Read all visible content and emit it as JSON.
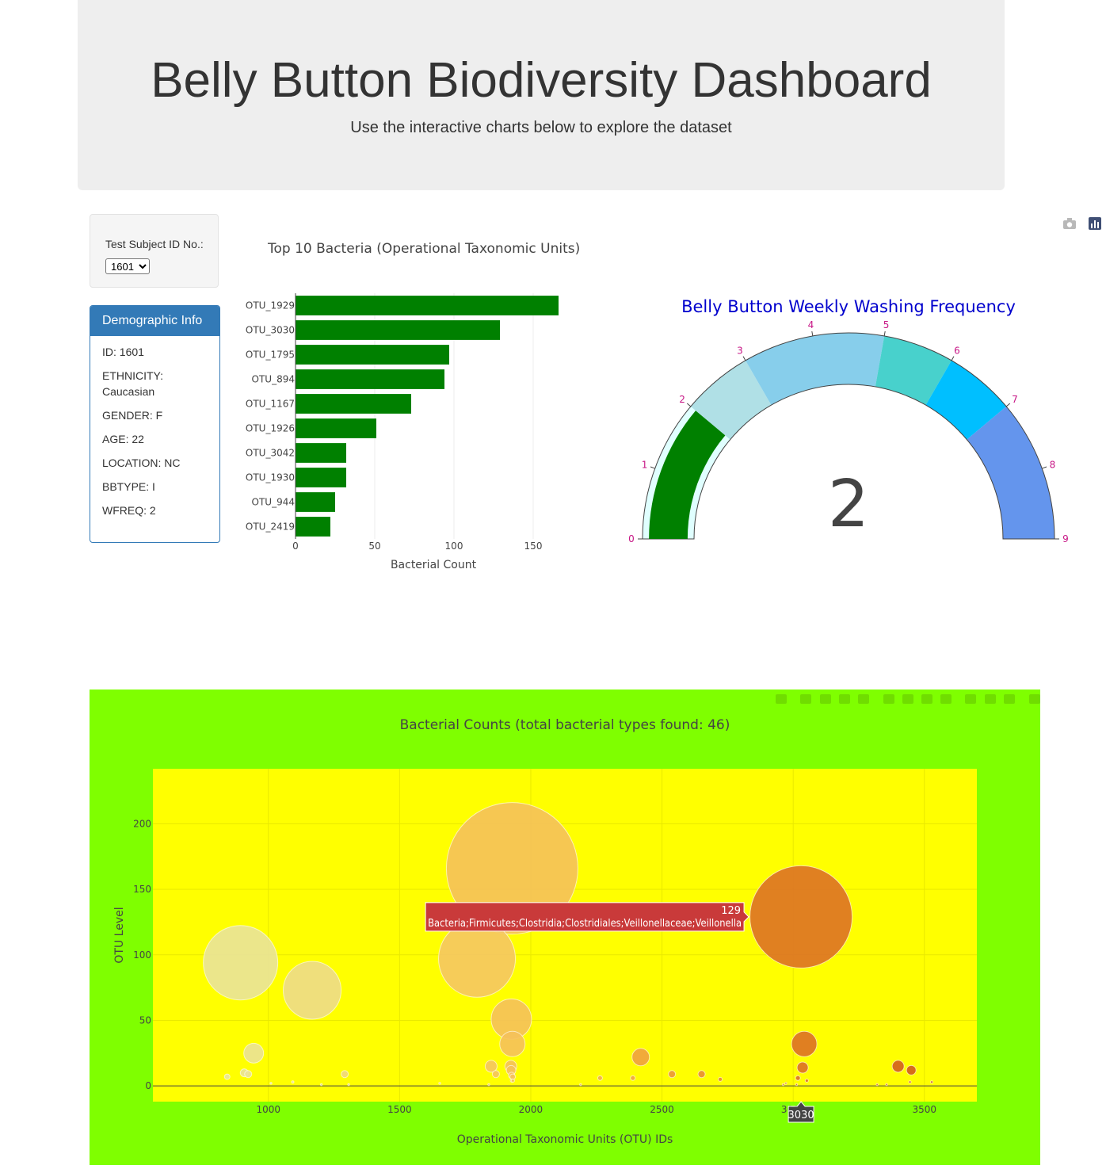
{
  "header": {
    "title": "Belly Button Biodiversity Dashboard",
    "subtitle": "Use the interactive charts below to explore the dataset"
  },
  "selector": {
    "label": "Test Subject ID No.:",
    "selected": "1601"
  },
  "demographics": {
    "title": "Demographic Info",
    "lines": [
      "ID: 1601",
      "ETHNICITY: Caucasian",
      "GENDER: F",
      "AGE: 22",
      "LOCATION: NC",
      "BBTYPE: I",
      "WFREQ: 2"
    ]
  },
  "colors": {
    "bar": "#008000",
    "demographic_header": "#337ab7",
    "bubble_paper": "#7fff00",
    "bubble_plot": "#ffff00",
    "gauge_title": "#0000cd",
    "gauge_ticks": "#c71585",
    "hover_label": "#c93a3a"
  },
  "icons": {
    "top_modebar": [
      "camera-icon",
      "plotly-logo-icon"
    ],
    "bubble_modebar": [
      "camera-icon",
      "zoom-icon",
      "pan-icon",
      "box-select-icon",
      "lasso-icon",
      "zoom-in-icon",
      "zoom-out-icon",
      "autoscale-icon",
      "home-icon",
      "spike-lines-icon",
      "hover-closest-icon",
      "hover-compare-icon",
      "plotly-logo-icon"
    ]
  },
  "chart_data": [
    {
      "type": "bar",
      "orientation": "h",
      "title": "Top 10 Bacteria (Operational Taxonomic Units)",
      "xlabel": "Bacterial Count",
      "ylabel": "",
      "categories": [
        "OTU_1929",
        "OTU_3030",
        "OTU_1795",
        "OTU_894",
        "OTU_1167",
        "OTU_1926",
        "OTU_3042",
        "OTU_1930",
        "OTU_944",
        "OTU_2419"
      ],
      "values": [
        166,
        129,
        97,
        94,
        73,
        51,
        32,
        32,
        25,
        22
      ],
      "xlim": [
        0,
        175
      ],
      "xticks": [
        0,
        50,
        100,
        150
      ],
      "grid": true
    },
    {
      "type": "gauge",
      "title": "Belly Button Weekly Washing Frequency",
      "value": 2,
      "range": [
        0,
        9
      ],
      "ticks": [
        0,
        1,
        2,
        3,
        4,
        5,
        6,
        7,
        8,
        9
      ],
      "steps": [
        {
          "range": [
            0,
            2
          ],
          "color": "#e0ffff"
        },
        {
          "range": [
            2,
            3
          ],
          "color": "#b0e0e6"
        },
        {
          "range": [
            3,
            5
          ],
          "color": "#87ceeb"
        },
        {
          "range": [
            5,
            6
          ],
          "color": "#48d1cc"
        },
        {
          "range": [
            6,
            7
          ],
          "color": "#00bfff"
        },
        {
          "range": [
            7,
            9
          ],
          "color": "#6495ed"
        }
      ],
      "bar_color": "#008000"
    },
    {
      "type": "scatter",
      "mode": "markers",
      "title": "Bacterial Counts  (total bacterial types found: 46)",
      "xlabel": "Operational Taxonomic Units (OTU) IDs",
      "ylabel": "OTU   Level",
      "xlim": [
        560,
        3700
      ],
      "ylim": [
        -12,
        242
      ],
      "xticks": [
        1000,
        1500,
        2000,
        2500,
        3000,
        3500
      ],
      "yticks": [
        0,
        50,
        100,
        150,
        200
      ],
      "grid": true,
      "points": [
        {
          "x": 1929,
          "y": 166
        },
        {
          "x": 3030,
          "y": 129
        },
        {
          "x": 1795,
          "y": 97
        },
        {
          "x": 894,
          "y": 94
        },
        {
          "x": 1167,
          "y": 73
        },
        {
          "x": 1926,
          "y": 51
        },
        {
          "x": 3042,
          "y": 32
        },
        {
          "x": 1930,
          "y": 32
        },
        {
          "x": 944,
          "y": 25
        },
        {
          "x": 2419,
          "y": 22
        },
        {
          "x": 3400,
          "y": 15
        },
        {
          "x": 1849,
          "y": 15
        },
        {
          "x": 1924,
          "y": 15
        },
        {
          "x": 3036,
          "y": 14
        },
        {
          "x": 3450,
          "y": 12
        },
        {
          "x": 1925,
          "y": 12
        },
        {
          "x": 908,
          "y": 10
        },
        {
          "x": 1867,
          "y": 9
        },
        {
          "x": 923,
          "y": 9
        },
        {
          "x": 1291,
          "y": 9
        },
        {
          "x": 2538,
          "y": 9
        },
        {
          "x": 2651,
          "y": 9
        },
        {
          "x": 1927,
          "y": 8
        },
        {
          "x": 1931,
          "y": 7
        },
        {
          "x": 843,
          "y": 7
        },
        {
          "x": 2264,
          "y": 6
        },
        {
          "x": 2389,
          "y": 6
        },
        {
          "x": 3018,
          "y": 6
        },
        {
          "x": 2722,
          "y": 5
        },
        {
          "x": 1928,
          "y": 4
        },
        {
          "x": 1932,
          "y": 4
        },
        {
          "x": 3052,
          "y": 4
        },
        {
          "x": 1093,
          "y": 3
        },
        {
          "x": 3528,
          "y": 3
        },
        {
          "x": 3445,
          "y": 3
        },
        {
          "x": 2972,
          "y": 2
        },
        {
          "x": 1653,
          "y": 2
        },
        {
          "x": 1010,
          "y": 2
        },
        {
          "x": 2190,
          "y": 1
        },
        {
          "x": 1202,
          "y": 1
        },
        {
          "x": 3320,
          "y": 1
        },
        {
          "x": 2962,
          "y": 1
        },
        {
          "x": 1306,
          "y": 1
        },
        {
          "x": 1840,
          "y": 1
        },
        {
          "x": 3013,
          "y": 1
        },
        {
          "x": 3356,
          "y": 1
        }
      ],
      "hover": {
        "x": 3030,
        "y": 129,
        "x_label": "3030",
        "value": "129",
        "text": "Bacteria;Firmicutes;Clostridia;Clostridiales;Veillonellaceae;Veillonella"
      }
    }
  ]
}
